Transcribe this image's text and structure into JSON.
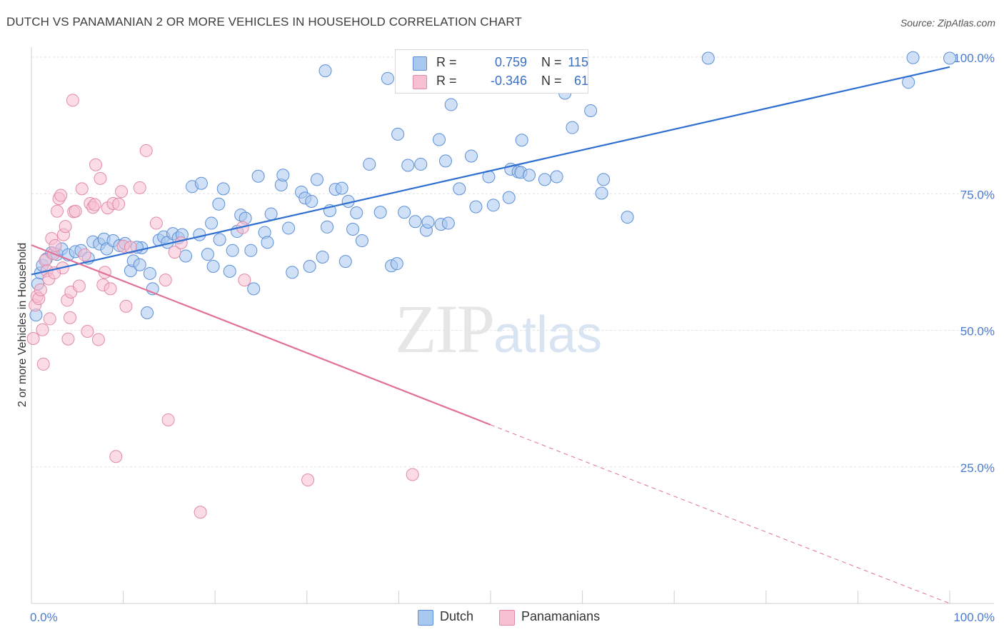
{
  "title": "DUTCH VS PANAMANIAN 2 OR MORE VEHICLES IN HOUSEHOLD CORRELATION CHART",
  "source": "Source: ZipAtlas.com",
  "watermark": {
    "zip": "ZIP",
    "atlas": "atlas"
  },
  "legend": {
    "r_label": "R =",
    "n_label": "N =",
    "rows": [
      {
        "r": "0.759",
        "n": "115",
        "fill": "#a9c8f0",
        "stroke": "#5b8fd6"
      },
      {
        "r": "-0.346",
        "n": "61",
        "fill": "#f7bfd2",
        "stroke": "#e08aa8"
      }
    ]
  },
  "chart_data": {
    "type": "scatter",
    "title": "DUTCH VS PANAMANIAN 2 OR MORE VEHICLES IN HOUSEHOLD CORRELATION CHART",
    "xlabel": "",
    "ylabel": "2 or more Vehicles in Household",
    "xlim": [
      0,
      100
    ],
    "ylim": [
      0,
      100
    ],
    "x_tick_labels": [
      {
        "value": 0,
        "label": "0.0%"
      },
      {
        "value": 100,
        "label": "100.0%"
      }
    ],
    "y_tick_labels": [
      {
        "value": 25,
        "label": "25.0%"
      },
      {
        "value": 50,
        "label": "50.0%"
      },
      {
        "value": 75,
        "label": "75.0%"
      },
      {
        "value": 100,
        "label": "100.0%"
      }
    ],
    "grid": true,
    "legend_position": "bottom-center",
    "series": [
      {
        "name": "Dutch",
        "color": "#a9c8f0",
        "stroke": "#5b8fd6",
        "trend": {
          "x": [
            0,
            100
          ],
          "y": [
            60.2,
            98.2
          ],
          "color": "#2f6fd0"
        },
        "points": [
          [
            0.5,
            52.8
          ],
          [
            0.7,
            58.5
          ],
          [
            1.0,
            60.5
          ],
          [
            1.2,
            61.9
          ],
          [
            1.6,
            63.0
          ],
          [
            2.2,
            64.2
          ],
          [
            2.8,
            63.9
          ],
          [
            3.3,
            64.9
          ],
          [
            4.0,
            63.8
          ],
          [
            4.8,
            64.4
          ],
          [
            5.4,
            64.6
          ],
          [
            6.2,
            63.2
          ],
          [
            6.7,
            66.2
          ],
          [
            7.4,
            65.8
          ],
          [
            7.9,
            66.7
          ],
          [
            8.2,
            64.9
          ],
          [
            8.9,
            66.4
          ],
          [
            9.6,
            65.5
          ],
          [
            10.2,
            65.9
          ],
          [
            10.8,
            60.9
          ],
          [
            11.1,
            62.7
          ],
          [
            11.8,
            62.0
          ],
          [
            12.0,
            65.1
          ],
          [
            12.6,
            53.2
          ],
          [
            12.9,
            60.4
          ],
          [
            13.2,
            57.6
          ],
          [
            13.9,
            66.5
          ],
          [
            14.4,
            67.1
          ],
          [
            14.8,
            66.1
          ],
          [
            15.4,
            67.7
          ],
          [
            16.0,
            66.9
          ],
          [
            16.4,
            67.5
          ],
          [
            16.8,
            63.6
          ],
          [
            17.5,
            76.3
          ],
          [
            18.3,
            67.5
          ],
          [
            18.5,
            76.9
          ],
          [
            19.2,
            63.9
          ],
          [
            19.6,
            69.6
          ],
          [
            19.8,
            61.7
          ],
          [
            20.4,
            73.1
          ],
          [
            20.9,
            75.9
          ],
          [
            21.6,
            60.8
          ],
          [
            21.9,
            64.6
          ],
          [
            22.4,
            68.1
          ],
          [
            22.8,
            71.1
          ],
          [
            23.3,
            70.5
          ],
          [
            23.9,
            64.6
          ],
          [
            24.2,
            57.6
          ],
          [
            24.7,
            78.2
          ],
          [
            25.4,
            67.9
          ],
          [
            25.7,
            66.1
          ],
          [
            26.1,
            71.3
          ],
          [
            27.2,
            76.6
          ],
          [
            27.4,
            78.4
          ],
          [
            28.0,
            68.7
          ],
          [
            28.4,
            60.6
          ],
          [
            29.4,
            75.3
          ],
          [
            29.8,
            74.2
          ],
          [
            30.3,
            61.7
          ],
          [
            30.5,
            73.6
          ],
          [
            31.1,
            77.6
          ],
          [
            31.7,
            63.4
          ],
          [
            32.2,
            68.9
          ],
          [
            32.5,
            71.9
          ],
          [
            33.1,
            75.8
          ],
          [
            33.8,
            76.0
          ],
          [
            34.2,
            62.6
          ],
          [
            34.5,
            73.6
          ],
          [
            35.0,
            68.5
          ],
          [
            35.4,
            71.5
          ],
          [
            36.0,
            66.4
          ],
          [
            36.8,
            80.4
          ],
          [
            38.0,
            71.6
          ],
          [
            38.8,
            96.1
          ],
          [
            39.2,
            61.8
          ],
          [
            39.8,
            62.2
          ],
          [
            39.9,
            85.9
          ],
          [
            40.6,
            71.6
          ],
          [
            41.0,
            80.2
          ],
          [
            41.8,
            69.9
          ],
          [
            42.4,
            80.4
          ],
          [
            43.0,
            68.3
          ],
          [
            43.2,
            69.8
          ],
          [
            44.4,
            84.9
          ],
          [
            44.6,
            69.4
          ],
          [
            45.1,
            81.0
          ],
          [
            45.4,
            69.6
          ],
          [
            45.7,
            91.3
          ],
          [
            46.6,
            75.9
          ],
          [
            47.9,
            81.9
          ],
          [
            48.4,
            72.6
          ],
          [
            49.8,
            78.1
          ],
          [
            50.3,
            72.9
          ],
          [
            52.0,
            74.3
          ],
          [
            52.2,
            79.5
          ],
          [
            53.0,
            79.0
          ],
          [
            53.3,
            78.9
          ],
          [
            53.4,
            84.8
          ],
          [
            54.2,
            78.4
          ],
          [
            55.9,
            77.6
          ],
          [
            57.2,
            78.1
          ],
          [
            58.1,
            93.4
          ],
          [
            58.9,
            87.1
          ],
          [
            60.9,
            90.2
          ],
          [
            62.1,
            75.1
          ],
          [
            62.3,
            77.6
          ],
          [
            64.9,
            70.7
          ],
          [
            73.7,
            99.8
          ],
          [
            95.5,
            95.4
          ],
          [
            100.0,
            99.8
          ],
          [
            96.0,
            99.9
          ],
          [
            44.0,
            100.2
          ],
          [
            32.0,
            97.5
          ],
          [
            20.5,
            66.6
          ],
          [
            11.5,
            65.2
          ]
        ]
      },
      {
        "name": "Panamanians",
        "color": "#f7bfd2",
        "stroke": "#e08aa8",
        "trend": {
          "x": [
            0,
            50
          ],
          "y": [
            65.6,
            32.7
          ],
          "dashed_to": {
            "x": 100,
            "y": 0
          },
          "color": "#e07099"
        },
        "points": [
          [
            0.2,
            48.5
          ],
          [
            0.4,
            54.6
          ],
          [
            0.6,
            56.2
          ],
          [
            0.8,
            55.8
          ],
          [
            1.0,
            57.4
          ],
          [
            1.2,
            50.1
          ],
          [
            1.3,
            43.8
          ],
          [
            1.5,
            62.8
          ],
          [
            1.7,
            60.9
          ],
          [
            1.9,
            59.4
          ],
          [
            2.0,
            52.1
          ],
          [
            2.2,
            66.8
          ],
          [
            2.4,
            64.0
          ],
          [
            2.6,
            65.5
          ],
          [
            2.8,
            71.8
          ],
          [
            3.0,
            74.1
          ],
          [
            3.2,
            74.7
          ],
          [
            3.4,
            61.4
          ],
          [
            3.5,
            67.5
          ],
          [
            3.7,
            69.0
          ],
          [
            3.9,
            55.5
          ],
          [
            4.0,
            48.4
          ],
          [
            4.2,
            52.3
          ],
          [
            4.3,
            57.0
          ],
          [
            4.5,
            92.1
          ],
          [
            4.6,
            71.7
          ],
          [
            4.8,
            71.8
          ],
          [
            5.2,
            58.1
          ],
          [
            5.5,
            75.9
          ],
          [
            5.8,
            63.8
          ],
          [
            6.1,
            49.8
          ],
          [
            6.4,
            73.2
          ],
          [
            6.7,
            72.5
          ],
          [
            7.0,
            80.3
          ],
          [
            7.3,
            48.3
          ],
          [
            7.5,
            77.8
          ],
          [
            7.8,
            58.3
          ],
          [
            8.0,
            60.6
          ],
          [
            8.3,
            72.4
          ],
          [
            8.6,
            57.6
          ],
          [
            8.9,
            73.2
          ],
          [
            9.2,
            26.9
          ],
          [
            9.5,
            73.1
          ],
          [
            9.8,
            75.4
          ],
          [
            10.0,
            65.4
          ],
          [
            10.3,
            54.4
          ],
          [
            10.8,
            65.2
          ],
          [
            11.8,
            76.1
          ],
          [
            12.5,
            82.9
          ],
          [
            13.6,
            69.6
          ],
          [
            14.6,
            59.2
          ],
          [
            14.9,
            33.6
          ],
          [
            15.6,
            64.3
          ],
          [
            16.3,
            66.0
          ],
          [
            18.4,
            16.7
          ],
          [
            23.0,
            68.8
          ],
          [
            23.2,
            59.2
          ],
          [
            30.1,
            22.6
          ],
          [
            41.5,
            23.6
          ],
          [
            6.9,
            73.0
          ],
          [
            2.5,
            60.5
          ]
        ]
      }
    ]
  }
}
